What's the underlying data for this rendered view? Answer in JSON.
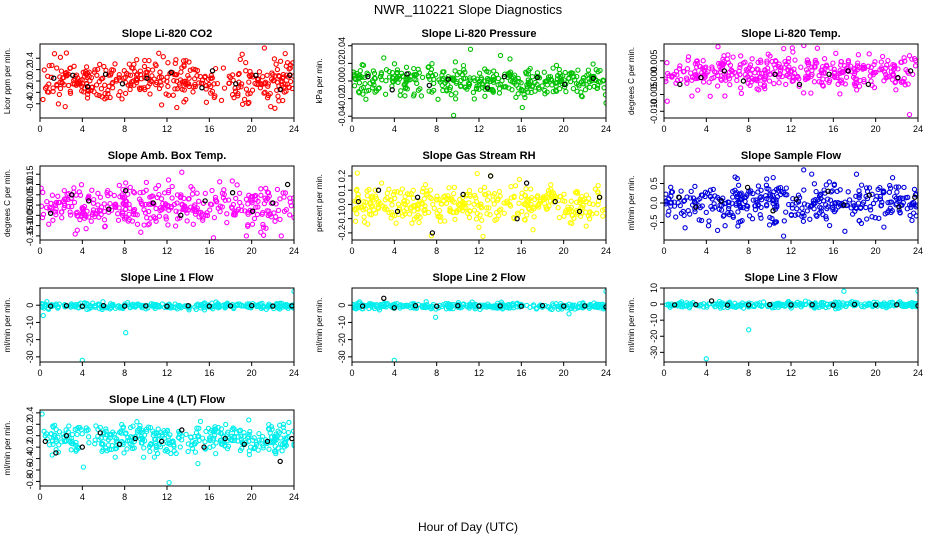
{
  "figure": {
    "title": "NWR_110221  Slope Diagnostics",
    "xlabel": "Hour of Day (UTC)"
  },
  "chart_data": [
    {
      "type": "scatter",
      "title": "Slope Li-820 CO2",
      "ylabel": "Licor ppm per min.",
      "color": "#ff0000",
      "xlim": [
        0,
        24
      ],
      "ylim": [
        -0.65,
        0.65
      ],
      "xticks": [
        0,
        4,
        8,
        12,
        16,
        20,
        24
      ],
      "yticks": [
        -0.4,
        -0.2,
        0.0,
        0.2,
        0.4
      ],
      "ytick_labels": [
        "-0.4",
        "-0.2",
        "0.0",
        "0.2",
        "0.4"
      ],
      "center": 0.0,
      "spread": 0.18,
      "n": 380,
      "outliers": [
        {
          "x": 21.2,
          "y": 0.58
        },
        {
          "x": 22.2,
          "y": -0.48
        },
        {
          "x": 21.8,
          "y": -0.45
        }
      ],
      "black": [
        [
          1.3,
          0.05
        ],
        [
          3.1,
          0.1
        ],
        [
          4.5,
          -0.1
        ],
        [
          6.2,
          0.12
        ],
        [
          7.8,
          -0.05
        ],
        [
          10.1,
          0.05
        ],
        [
          12.4,
          0.15
        ],
        [
          15.3,
          -0.12
        ],
        [
          16.3,
          0.18
        ],
        [
          18.5,
          -0.05
        ],
        [
          20.4,
          0.1
        ],
        [
          22.7,
          -0.15
        ],
        [
          23.6,
          0.1
        ]
      ]
    },
    {
      "type": "scatter",
      "title": "Slope Li-820 Pressure",
      "ylabel": "kPa per min.",
      "color": "#00c000",
      "xlim": [
        0,
        24
      ],
      "ylim": [
        -0.042,
        0.042
      ],
      "xticks": [
        0,
        4,
        8,
        12,
        16,
        20,
        24
      ],
      "yticks": [
        -0.04,
        -0.02,
        0.0,
        0.02,
        0.04
      ],
      "ytick_labels": [
        "-0.04",
        "-0.02",
        "0.00",
        "0.02",
        "0.04"
      ],
      "center": 0.0,
      "spread": 0.009,
      "n": 380,
      "outliers": [
        {
          "x": 11.2,
          "y": 0.036
        },
        {
          "x": 9.6,
          "y": -0.039
        },
        {
          "x": 24.0,
          "y": -0.025
        }
      ],
      "black": [
        [
          1.5,
          0.005
        ],
        [
          3.8,
          -0.01
        ],
        [
          5.2,
          0.008
        ],
        [
          7.3,
          -0.005
        ],
        [
          9.1,
          0.002
        ],
        [
          12.8,
          -0.008
        ],
        [
          14.4,
          0.005
        ],
        [
          17.5,
          0.004
        ],
        [
          20.1,
          -0.004
        ],
        [
          22.8,
          0.003
        ]
      ]
    },
    {
      "type": "scatter",
      "title": "Slope Li-820 Temp.",
      "ylabel": "degrees C per min.",
      "color": "#ff00ff",
      "xlim": [
        0,
        24
      ],
      "ylim": [
        -0.012,
        0.01
      ],
      "xticks": [
        0,
        4,
        8,
        12,
        16,
        20,
        24
      ],
      "yticks": [
        -0.01,
        -0.005,
        0.0,
        0.005
      ],
      "ytick_labels": [
        "-0.010",
        "-0.005",
        "0.000",
        "0.005"
      ],
      "center": 0.0015,
      "spread": 0.0028,
      "n": 380,
      "outliers": [
        {
          "x": 5.1,
          "y": 0.0092
        },
        {
          "x": 0.3,
          "y": -0.007
        },
        {
          "x": 23.2,
          "y": -0.011
        }
      ],
      "black": [
        [
          1.5,
          -0.002
        ],
        [
          3.5,
          0.0
        ],
        [
          5.7,
          0.002
        ],
        [
          7.5,
          -0.001
        ],
        [
          10.5,
          0.001
        ],
        [
          12.8,
          -0.002
        ],
        [
          15.6,
          0.001
        ],
        [
          17.4,
          0.002
        ],
        [
          19.3,
          -0.002
        ],
        [
          22.1,
          0.0
        ],
        [
          23.3,
          0.002
        ]
      ]
    },
    {
      "type": "scatter",
      "title": "Slope Amb. Box Temp.",
      "ylabel": "degrees C per min.",
      "color": "#ff00ff",
      "xlim": [
        0,
        24
      ],
      "ylim": [
        -0.17,
        0.19
      ],
      "xticks": [
        0,
        4,
        8,
        12,
        16,
        20,
        24
      ],
      "yticks": [
        -0.15,
        -0.1,
        -0.05,
        0.0,
        0.05,
        0.1,
        0.15
      ],
      "ytick_labels": [
        "-0.15",
        "-0.10",
        "-0.05",
        "0.00",
        "0.05",
        "0.10",
        "0.15"
      ],
      "center": 0.0,
      "spread": 0.05,
      "n": 380,
      "outliers": [
        {
          "x": 13.4,
          "y": 0.16
        },
        {
          "x": 19.5,
          "y": -0.15
        },
        {
          "x": 22.8,
          "y": -0.15
        }
      ],
      "black": [
        [
          1.0,
          -0.04
        ],
        [
          3.0,
          0.05
        ],
        [
          4.6,
          0.02
        ],
        [
          6.5,
          -0.02
        ],
        [
          8.1,
          0.07
        ],
        [
          10.7,
          0.01
        ],
        [
          13.3,
          -0.05
        ],
        [
          15.6,
          0.02
        ],
        [
          18.2,
          0.06
        ],
        [
          20.1,
          -0.03
        ],
        [
          22.0,
          0.01
        ],
        [
          23.4,
          0.1
        ]
      ]
    },
    {
      "type": "scatter",
      "title": "Slope Gas Stream RH",
      "ylabel": "percent per min.",
      "color": "#ffff00",
      "xlim": [
        0,
        24
      ],
      "ylim": [
        -0.25,
        0.27
      ],
      "xticks": [
        0,
        4,
        8,
        12,
        16,
        20,
        24
      ],
      "yticks": [
        -0.2,
        -0.1,
        0.0,
        0.1,
        0.2
      ],
      "ytick_labels": [
        "-0.2",
        "-0.1",
        "0.0",
        "0.1",
        "0.2"
      ],
      "center": 0.0,
      "spread": 0.07,
      "n": 380,
      "outliers": [
        {
          "x": 0.5,
          "y": 0.22
        },
        {
          "x": 7.5,
          "y": -0.22
        }
      ],
      "black": [
        [
          0.6,
          0.02
        ],
        [
          2.5,
          0.1
        ],
        [
          4.3,
          -0.05
        ],
        [
          6.2,
          0.05
        ],
        [
          7.6,
          -0.2
        ],
        [
          10.5,
          0.07
        ],
        [
          13.1,
          0.2
        ],
        [
          15.6,
          -0.1
        ],
        [
          16.5,
          0.15
        ],
        [
          19.2,
          0.02
        ],
        [
          21.5,
          -0.05
        ],
        [
          23.4,
          0.05
        ]
      ]
    },
    {
      "type": "scatter",
      "title": "Slope Sample Flow",
      "ylabel": "ml/min per min.",
      "color": "#0000dd",
      "xlim": [
        0,
        24
      ],
      "ylim": [
        -0.95,
        0.95
      ],
      "xticks": [
        0,
        4,
        8,
        12,
        16,
        20,
        24
      ],
      "yticks": [
        -0.5,
        0.0,
        0.5
      ],
      "ytick_labels": [
        "-0.5",
        "0.0",
        "0.5"
      ],
      "center": 0.0,
      "spread": 0.25,
      "n": 380,
      "outliers": [
        {
          "x": 13.2,
          "y": 0.85
        },
        {
          "x": 11.3,
          "y": -0.85
        },
        {
          "x": 21.6,
          "y": 0.65
        }
      ],
      "black": [
        [
          1.4,
          0.15
        ],
        [
          3.0,
          -0.1
        ],
        [
          5.4,
          0.05
        ],
        [
          7.9,
          0.4
        ],
        [
          10.3,
          -0.2
        ],
        [
          12.5,
          0.1
        ],
        [
          15.5,
          0.3
        ],
        [
          17.0,
          -0.05
        ],
        [
          19.4,
          0.2
        ],
        [
          22.2,
          -0.1
        ],
        [
          23.7,
          0.15
        ]
      ]
    },
    {
      "type": "scatter",
      "title": "Slope Line 1 Flow",
      "ylabel": "ml/min per min.",
      "color": "#00eeee",
      "xlim": [
        0,
        24
      ],
      "ylim": [
        -33,
        10
      ],
      "xticks": [
        0,
        4,
        8,
        12,
        16,
        20,
        24
      ],
      "yticks": [
        -30,
        -20,
        -10,
        0
      ],
      "ytick_labels": [
        "-30",
        "-20",
        "-10",
        "0"
      ],
      "center": -0.5,
      "spread": 0.9,
      "n": 300,
      "outliers": [
        {
          "x": 4.0,
          "y": -32
        },
        {
          "x": 8.1,
          "y": -16
        },
        {
          "x": 0.3,
          "y": -6
        },
        {
          "x": 24.0,
          "y": 8
        }
      ],
      "black": [
        [
          1.0,
          -0.5
        ],
        [
          2.5,
          -0.3
        ],
        [
          4.0,
          -0.6
        ],
        [
          6.0,
          -0.2
        ],
        [
          8.0,
          -0.5
        ],
        [
          10.0,
          -0.4
        ],
        [
          12.0,
          -0.6
        ],
        [
          14.0,
          -0.3
        ],
        [
          16.0,
          -0.5
        ],
        [
          18.0,
          -0.4
        ],
        [
          20.0,
          -0.2
        ],
        [
          22.0,
          -0.5
        ],
        [
          23.8,
          -0.4
        ]
      ]
    },
    {
      "type": "scatter",
      "title": "Slope Line 2 Flow",
      "ylabel": "ml/min per min.",
      "color": "#00eeee",
      "xlim": [
        0,
        24
      ],
      "ylim": [
        -33,
        10
      ],
      "xticks": [
        0,
        4,
        8,
        12,
        16,
        20,
        24
      ],
      "yticks": [
        -30,
        -20,
        -10,
        0
      ],
      "ytick_labels": [
        "-30",
        "-20",
        "-10",
        "0"
      ],
      "center": -0.5,
      "spread": 0.9,
      "n": 300,
      "outliers": [
        {
          "x": 4.0,
          "y": -32
        },
        {
          "x": 7.9,
          "y": -7
        },
        {
          "x": 24.0,
          "y": 8
        },
        {
          "x": 20.5,
          "y": -5
        }
      ],
      "black": [
        [
          1.0,
          -0.5
        ],
        [
          3.0,
          4.0
        ],
        [
          4.0,
          -1.5
        ],
        [
          6.0,
          -0.3
        ],
        [
          8.0,
          -0.6
        ],
        [
          10.0,
          -0.3
        ],
        [
          12.0,
          -0.5
        ],
        [
          14.0,
          -0.4
        ],
        [
          16.0,
          -0.6
        ],
        [
          18.0,
          -0.2
        ],
        [
          20.0,
          -0.5
        ],
        [
          22.0,
          -0.4
        ],
        [
          24.0,
          -1.0
        ]
      ]
    },
    {
      "type": "scatter",
      "title": "Slope Line 3 Flow",
      "ylabel": "ml/min per min.",
      "color": "#00eeee",
      "xlim": [
        0,
        24
      ],
      "ylim": [
        -36,
        10
      ],
      "xticks": [
        0,
        4,
        8,
        12,
        16,
        20,
        24
      ],
      "yticks": [
        -30,
        -20,
        -10,
        0,
        10
      ],
      "ytick_labels": [
        "-30",
        "-20",
        "-10",
        "0",
        "10"
      ],
      "center": -0.5,
      "spread": 0.9,
      "n": 300,
      "outliers": [
        {
          "x": 4.0,
          "y": -34
        },
        {
          "x": 8.0,
          "y": -16
        },
        {
          "x": 17.0,
          "y": 8
        },
        {
          "x": 24.0,
          "y": 8
        }
      ],
      "black": [
        [
          1.0,
          -0.5
        ],
        [
          3.0,
          -0.3
        ],
        [
          4.5,
          2.0
        ],
        [
          6.0,
          -0.6
        ],
        [
          8.0,
          -0.5
        ],
        [
          10.0,
          -0.3
        ],
        [
          12.0,
          -0.5
        ],
        [
          14.0,
          -0.4
        ],
        [
          16.0,
          -0.6
        ],
        [
          18.0,
          -0.2
        ],
        [
          20.0,
          -0.5
        ],
        [
          22.0,
          -0.4
        ],
        [
          24.0,
          -1.0
        ]
      ]
    },
    {
      "type": "scatter",
      "title": "Slope Line 4 (LT) Flow",
      "ylabel": "ml/min per min.",
      "color": "#00eeee",
      "xlim": [
        0,
        24
      ],
      "ylim": [
        -0.88,
        0.45
      ],
      "xticks": [
        0,
        4,
        8,
        12,
        16,
        20,
        24
      ],
      "yticks": [
        -0.8,
        -0.6,
        -0.4,
        -0.2,
        0.0,
        0.2,
        0.4
      ],
      "ytick_labels": [
        "-0.8",
        "-0.6",
        "-0.4",
        "-0.2",
        "0.0",
        "0.2",
        "0.4"
      ],
      "center": -0.05,
      "spread": 0.13,
      "n": 380,
      "outliers": [
        {
          "x": 12.2,
          "y": -0.82
        },
        {
          "x": 4.1,
          "y": -0.55
        },
        {
          "x": 0.2,
          "y": 0.38
        }
      ],
      "black": [
        [
          0.5,
          -0.1
        ],
        [
          1.5,
          -0.3
        ],
        [
          2.5,
          0.0
        ],
        [
          4.0,
          -0.2
        ],
        [
          5.7,
          0.05
        ],
        [
          7.5,
          -0.15
        ],
        [
          9.0,
          -0.05
        ],
        [
          11.5,
          -0.1
        ],
        [
          13.4,
          0.1
        ],
        [
          15.5,
          -0.2
        ],
        [
          17.5,
          -0.05
        ],
        [
          19.3,
          -0.15
        ],
        [
          21.5,
          -0.1
        ],
        [
          22.7,
          -0.45
        ],
        [
          23.8,
          -0.05
        ]
      ]
    }
  ]
}
